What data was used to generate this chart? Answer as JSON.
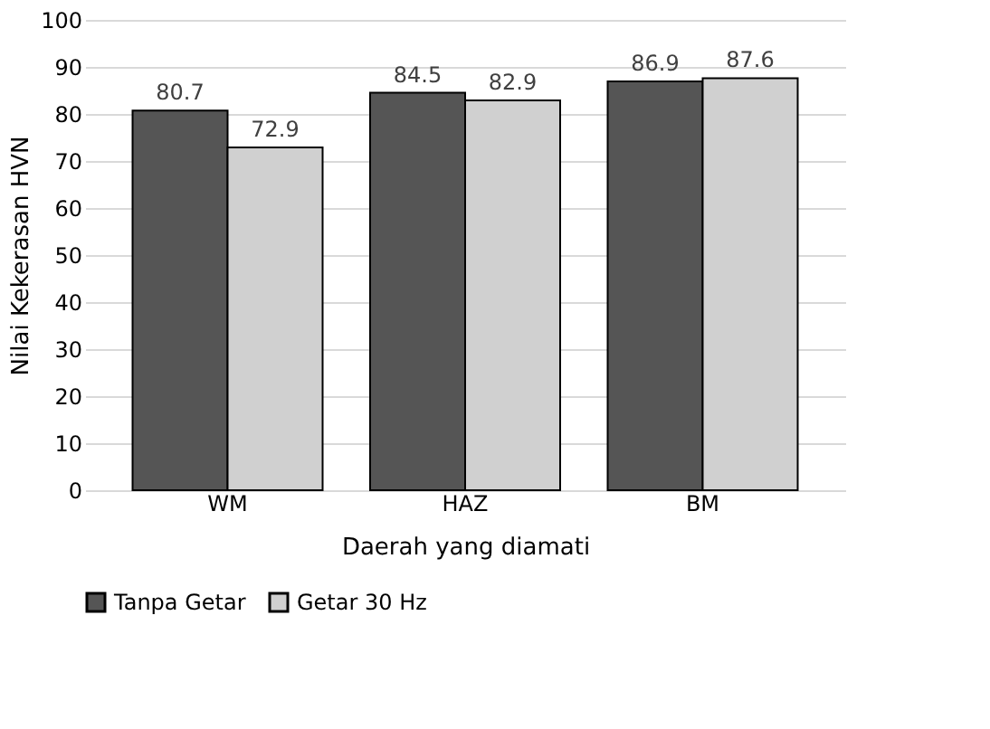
{
  "chart_data": {
    "type": "bar",
    "xlabel": "Daerah yang diamati",
    "ylabel": "Nilai Kekerasan HVN",
    "categories": [
      "WM",
      "HAZ",
      "BM"
    ],
    "series": [
      {
        "name": "Tanpa Getar",
        "color": "#555555",
        "values": [
          80.7,
          84.5,
          86.9
        ]
      },
      {
        "name": "Getar 30 Hz",
        "color": "#d0d0d0",
        "values": [
          72.9,
          82.9,
          87.6
        ]
      }
    ],
    "ylim": [
      0,
      100
    ],
    "yticks": [
      0,
      10,
      20,
      30,
      40,
      50,
      60,
      70,
      80,
      90,
      100
    ],
    "grid": "y",
    "legend": "bottom",
    "data_labels": true
  }
}
